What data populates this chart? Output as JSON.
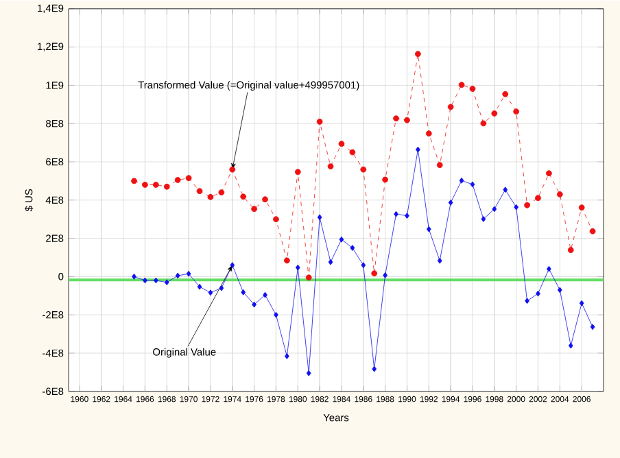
{
  "chart_data": {
    "type": "line",
    "xlabel": "Years",
    "ylabel": "$ US",
    "x": [
      1965,
      1966,
      1967,
      1968,
      1969,
      1970,
      1971,
      1972,
      1973,
      1974,
      1975,
      1976,
      1977,
      1978,
      1979,
      1980,
      1981,
      1982,
      1983,
      1984,
      1985,
      1986,
      1987,
      1988,
      1989,
      1990,
      1991,
      1992,
      1993,
      1994,
      1995,
      1996,
      1997,
      1998,
      1999,
      2000,
      2001,
      2002,
      2003,
      2004,
      2005,
      2006,
      2007
    ],
    "series": [
      {
        "color": "#ee1111",
        "marker": "circle",
        "line_style": "dashed",
        "values": [
          500000000.0,
          480000000.0,
          480000000.0,
          470000000.0,
          505000000.0,
          515000000.0,
          447000000.0,
          416000000.0,
          440000000.0,
          560000000.0,
          418000000.0,
          354000000.0,
          404000000.0,
          300000000.0,
          84000000.0,
          547000000.0,
          -5000000.0,
          810000000.0,
          576000000.0,
          694000000.0,
          650000000.0,
          560000000.0,
          17000000.0,
          507000000.0,
          827000000.0,
          818000000.0,
          1164000000.0,
          748000000.0,
          583000000.0,
          887000000.0,
          1002000000.0,
          982000000.0,
          801000000.0,
          853000000.0,
          954000000.0,
          863000000.0,
          373000000.0,
          411000000.0,
          540000000.0,
          430000000.0,
          139000000.0,
          361000000.0,
          237000000.0
        ]
      },
      {
        "color": "#1111ee",
        "marker": "diamond",
        "line_style": "solid",
        "values": [
          0,
          -20000000.0,
          -20000000.0,
          -30000000.0,
          5000000.0,
          15000000.0,
          -53000000.0,
          -84000000.0,
          -60000000.0,
          60000000.0,
          -82000000.0,
          -146000000.0,
          -96000000.0,
          -200000000.0,
          -416000000.0,
          47000000.0,
          -505000000.0,
          310000000.0,
          76000000.0,
          194000000.0,
          150000000.0,
          60000000.0,
          -483000000.0,
          7000000.0,
          327000000.0,
          318000000.0,
          664000000.0,
          248000000.0,
          83000000.0,
          387000000.0,
          502000000.0,
          482000000.0,
          301000000.0,
          353000000.0,
          454000000.0,
          363000000.0,
          -127000000.0,
          -89000000.0,
          40000000.0,
          -70000000.0,
          -361000000.0,
          -139000000.0,
          -263000000.0
        ]
      }
    ],
    "xlim": [
      1959,
      2008
    ],
    "xticks": [
      1960,
      1962,
      1964,
      1966,
      1968,
      1970,
      1972,
      1974,
      1976,
      1978,
      1980,
      1982,
      1984,
      1986,
      1988,
      1990,
      1992,
      1994,
      1996,
      1998,
      2000,
      2002,
      2004,
      2006
    ],
    "ylim": [
      -600000000.0,
      1400000000.0
    ],
    "yticks": [
      {
        "value": -600000000.0,
        "label": "-6E8"
      },
      {
        "value": -400000000.0,
        "label": "-4E8"
      },
      {
        "value": -200000000.0,
        "label": "-2E8"
      },
      0,
      {
        "value": 200000000.0,
        "label": "2E8"
      },
      {
        "value": 400000000.0,
        "label": "4E8"
      },
      {
        "value": 600000000.0,
        "label": "6E8"
      },
      {
        "value": 800000000.0,
        "label": "8E8"
      },
      {
        "value": 1000000000.0,
        "label": "1E9"
      },
      {
        "value": 1200000000.0,
        "label": "1,2E9"
      },
      {
        "value": 1400000000.0,
        "label": "1,4E9"
      }
    ],
    "grid": true,
    "ref_lines": [
      {
        "axis": "y",
        "value": -17000000.0,
        "color": "#66dd66"
      }
    ],
    "annotations": [
      {
        "text": "Transformed Value (=Original value+499957001)",
        "x": 1974,
        "y": 560000000.0
      },
      {
        "text": "Original Value",
        "x": 1974,
        "y": 60000000.0
      }
    ]
  }
}
